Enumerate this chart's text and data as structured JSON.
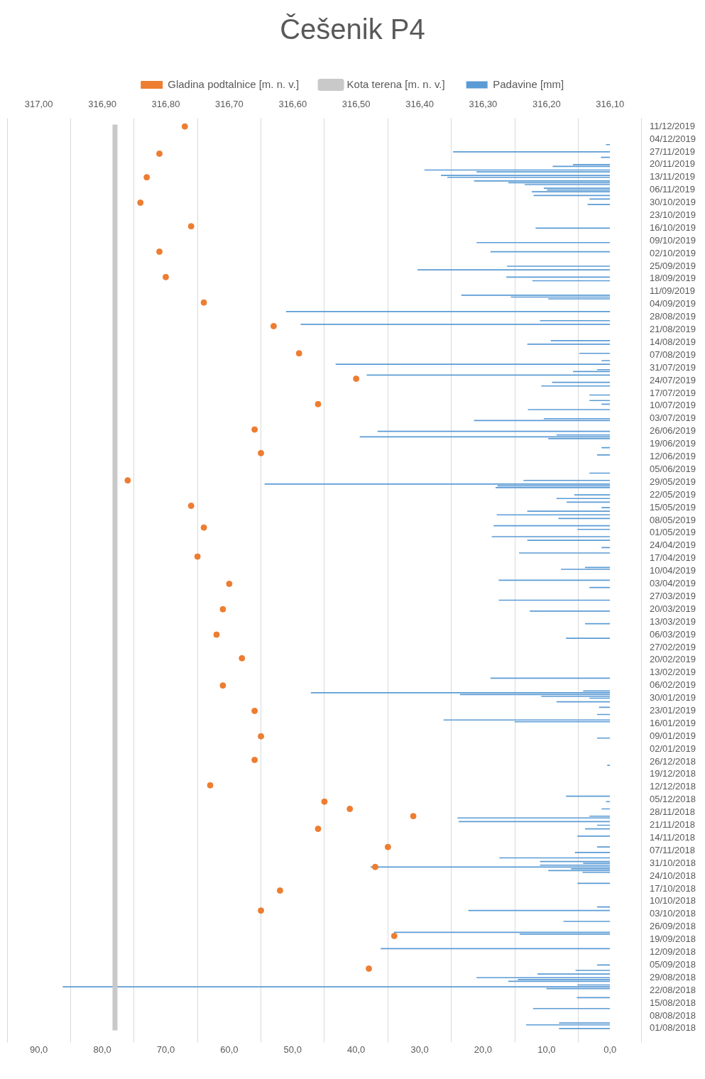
{
  "chart_data": {
    "type": "bar",
    "orientation": "horizontal",
    "title": "Češenik P4",
    "legend": "top",
    "grid": "x",
    "ylim": [
      "2018-07-31",
      "2019-12-12"
    ],
    "yticks": [
      {
        "value": "2018-08-01",
        "label": "01/08/2018"
      },
      {
        "value": "2018-08-08",
        "label": "08/08/2018"
      },
      {
        "value": "2018-08-15",
        "label": "15/08/2018"
      },
      {
        "value": "2018-08-22",
        "label": "22/08/2018"
      },
      {
        "value": "2018-08-29",
        "label": "29/08/2018"
      },
      {
        "value": "2018-09-05",
        "label": "05/09/2018"
      },
      {
        "value": "2018-09-12",
        "label": "12/09/2018"
      },
      {
        "value": "2018-09-19",
        "label": "19/09/2018"
      },
      {
        "value": "2018-09-26",
        "label": "26/09/2018"
      },
      {
        "value": "2018-10-03",
        "label": "03/10/2018"
      },
      {
        "value": "2018-10-10",
        "label": "10/10/2018"
      },
      {
        "value": "2018-10-17",
        "label": "17/10/2018"
      },
      {
        "value": "2018-10-24",
        "label": "24/10/2018"
      },
      {
        "value": "2018-10-31",
        "label": "31/10/2018"
      },
      {
        "value": "2018-11-07",
        "label": "07/11/2018"
      },
      {
        "value": "2018-11-14",
        "label": "14/11/2018"
      },
      {
        "value": "2018-11-21",
        "label": "21/11/2018"
      },
      {
        "value": "2018-11-28",
        "label": "28/11/2018"
      },
      {
        "value": "2018-12-05",
        "label": "05/12/2018"
      },
      {
        "value": "2018-12-12",
        "label": "12/12/2018"
      },
      {
        "value": "2018-12-19",
        "label": "19/12/2018"
      },
      {
        "value": "2018-12-26",
        "label": "26/12/2018"
      },
      {
        "value": "2019-01-02",
        "label": "02/01/2019"
      },
      {
        "value": "2019-01-09",
        "label": "09/01/2019"
      },
      {
        "value": "2019-01-16",
        "label": "16/01/2019"
      },
      {
        "value": "2019-01-23",
        "label": "23/01/2019"
      },
      {
        "value": "2019-01-30",
        "label": "30/01/2019"
      },
      {
        "value": "2019-02-06",
        "label": "06/02/2019"
      },
      {
        "value": "2019-02-13",
        "label": "13/02/2019"
      },
      {
        "value": "2019-02-20",
        "label": "20/02/2019"
      },
      {
        "value": "2019-02-27",
        "label": "27/02/2019"
      },
      {
        "value": "2019-03-06",
        "label": "06/03/2019"
      },
      {
        "value": "2019-03-13",
        "label": "13/03/2019"
      },
      {
        "value": "2019-03-20",
        "label": "20/03/2019"
      },
      {
        "value": "2019-03-27",
        "label": "27/03/2019"
      },
      {
        "value": "2019-04-03",
        "label": "03/04/2019"
      },
      {
        "value": "2019-04-10",
        "label": "10/04/2019"
      },
      {
        "value": "2019-04-17",
        "label": "17/04/2019"
      },
      {
        "value": "2019-04-24",
        "label": "24/04/2019"
      },
      {
        "value": "2019-05-01",
        "label": "01/05/2019"
      },
      {
        "value": "2019-05-08",
        "label": "08/05/2019"
      },
      {
        "value": "2019-05-15",
        "label": "15/05/2019"
      },
      {
        "value": "2019-05-22",
        "label": "22/05/2019"
      },
      {
        "value": "2019-05-29",
        "label": "29/05/2019"
      },
      {
        "value": "2019-06-05",
        "label": "05/06/2019"
      },
      {
        "value": "2019-06-12",
        "label": "12/06/2019"
      },
      {
        "value": "2019-06-19",
        "label": "19/06/2019"
      },
      {
        "value": "2019-06-26",
        "label": "26/06/2019"
      },
      {
        "value": "2019-07-03",
        "label": "03/07/2019"
      },
      {
        "value": "2019-07-10",
        "label": "10/07/2019"
      },
      {
        "value": "2019-07-17",
        "label": "17/07/2019"
      },
      {
        "value": "2019-07-24",
        "label": "24/07/2019"
      },
      {
        "value": "2019-07-31",
        "label": "31/07/2019"
      },
      {
        "value": "2019-08-07",
        "label": "07/08/2019"
      },
      {
        "value": "2019-08-14",
        "label": "14/08/2019"
      },
      {
        "value": "2019-08-21",
        "label": "21/08/2019"
      },
      {
        "value": "2019-08-28",
        "label": "28/08/2019"
      },
      {
        "value": "2019-09-04",
        "label": "04/09/2019"
      },
      {
        "value": "2019-09-11",
        "label": "11/09/2019"
      },
      {
        "value": "2019-09-18",
        "label": "18/09/2019"
      },
      {
        "value": "2019-09-25",
        "label": "25/09/2019"
      },
      {
        "value": "2019-10-02",
        "label": "02/10/2019"
      },
      {
        "value": "2019-10-09",
        "label": "09/10/2019"
      },
      {
        "value": "2019-10-16",
        "label": "16/10/2019"
      },
      {
        "value": "2019-10-23",
        "label": "23/10/2019"
      },
      {
        "value": "2019-10-30",
        "label": "30/10/2019"
      },
      {
        "value": "2019-11-06",
        "label": "06/11/2019"
      },
      {
        "value": "2019-11-13",
        "label": "13/11/2019"
      },
      {
        "value": "2019-11-20",
        "label": "20/11/2019"
      },
      {
        "value": "2019-11-27",
        "label": "27/11/2019"
      },
      {
        "value": "2019-12-04",
        "label": "04/12/2019"
      },
      {
        "value": "2019-12-11",
        "label": "11/12/2019"
      }
    ],
    "xlim": [
      90,
      0
    ],
    "xticks": [
      {
        "value": 0,
        "label": "0,0"
      },
      {
        "value": 10,
        "label": "10,0"
      },
      {
        "value": 20,
        "label": "20,0"
      },
      {
        "value": 30,
        "label": "30,0"
      },
      {
        "value": 40,
        "label": "40,0"
      },
      {
        "value": 50,
        "label": "50,0"
      },
      {
        "value": 60,
        "label": "60,0"
      },
      {
        "value": 70,
        "label": "70,0"
      },
      {
        "value": 80,
        "label": "80,0"
      },
      {
        "value": 90,
        "label": "90,0"
      }
    ],
    "x2lim": [
      317.0,
      316.1
    ],
    "x2ticks": [
      {
        "value": 316.1,
        "label": "316,10"
      },
      {
        "value": 316.2,
        "label": "316,20"
      },
      {
        "value": 316.3,
        "label": "316,30"
      },
      {
        "value": 316.4,
        "label": "316,40"
      },
      {
        "value": 316.5,
        "label": "316,50"
      },
      {
        "value": 316.6,
        "label": "316,60"
      },
      {
        "value": 316.7,
        "label": "316,70"
      },
      {
        "value": 316.8,
        "label": "316,80"
      },
      {
        "value": 316.9,
        "label": "316,90"
      },
      {
        "value": 317.0,
        "label": "317,00"
      }
    ],
    "series": [
      {
        "name": "Padavine [mm]",
        "color": "#5b9bd5",
        "x": [
          "2018-08-01",
          "2018-08-03",
          "2018-08-04",
          "2018-08-12",
          "2018-08-18",
          "2018-08-23",
          "2018-08-24",
          "2018-08-25",
          "2018-08-27",
          "2018-08-28",
          "2018-08-29",
          "2018-08-31",
          "2018-09-02",
          "2018-09-05",
          "2018-09-14",
          "2018-09-22",
          "2018-09-23",
          "2018-09-29",
          "2018-10-05",
          "2018-10-07",
          "2018-10-20",
          "2018-10-26",
          "2018-10-27",
          "2018-10-28",
          "2018-10-29",
          "2018-10-30",
          "2018-10-31",
          "2018-11-01",
          "2018-11-03",
          "2018-11-06",
          "2018-11-09",
          "2018-11-15",
          "2018-11-19",
          "2018-11-21",
          "2018-11-23",
          "2018-11-25",
          "2018-11-26",
          "2018-11-30",
          "2018-12-04",
          "2018-12-07",
          "2018-12-24",
          "2019-01-08",
          "2019-01-17",
          "2019-01-18",
          "2019-01-21",
          "2019-01-25",
          "2019-01-28",
          "2019-01-30",
          "2019-01-31",
          "2019-02-01",
          "2019-02-02",
          "2019-02-03",
          "2019-02-10",
          "2019-03-04",
          "2019-03-12",
          "2019-03-19",
          "2019-03-25",
          "2019-04-01",
          "2019-04-05",
          "2019-04-11",
          "2019-04-12",
          "2019-04-20",
          "2019-04-23",
          "2019-04-27",
          "2019-04-29",
          "2019-05-03",
          "2019-05-05",
          "2019-05-09",
          "2019-05-11",
          "2019-05-13",
          "2019-05-15",
          "2019-05-18",
          "2019-05-20",
          "2019-05-22",
          "2019-05-26",
          "2019-05-27",
          "2019-05-28",
          "2019-05-30",
          "2019-06-03",
          "2019-06-13",
          "2019-06-17",
          "2019-06-22",
          "2019-06-23",
          "2019-06-24",
          "2019-06-26",
          "2019-07-02",
          "2019-07-03",
          "2019-07-08",
          "2019-07-11",
          "2019-07-13",
          "2019-07-16",
          "2019-07-21",
          "2019-07-23",
          "2019-07-27",
          "2019-07-29",
          "2019-07-30",
          "2019-08-02",
          "2019-08-04",
          "2019-08-08",
          "2019-08-13",
          "2019-08-15",
          "2019-08-24",
          "2019-08-26",
          "2019-08-31",
          "2019-09-07",
          "2019-09-08",
          "2019-09-09",
          "2019-09-17",
          "2019-09-19",
          "2019-09-23",
          "2019-09-25",
          "2019-10-03",
          "2019-10-08",
          "2019-10-16",
          "2019-10-29",
          "2019-11-01",
          "2019-11-03",
          "2019-11-05",
          "2019-11-06",
          "2019-11-07",
          "2019-11-09",
          "2019-11-10",
          "2019-11-11",
          "2019-11-13",
          "2019-11-14",
          "2019-11-16",
          "2019-11-17",
          "2019-11-19",
          "2019-11-20",
          "2019-11-24",
          "2019-11-27",
          "2019-12-01"
        ],
        "values": [
          8.0,
          13.2,
          8.0,
          12.1,
          5.2,
          10.0,
          86.2,
          5.1,
          16.0,
          14.5,
          21.0,
          11.4,
          5.4,
          2.0,
          36.1,
          14.2,
          34.0,
          7.3,
          22.3,
          2.0,
          5.1,
          4.3,
          9.7,
          6.1,
          37.7,
          11.0,
          4.2,
          11.0,
          17.4,
          5.5,
          2.0,
          5.1,
          3.9,
          2.0,
          23.8,
          24.0,
          3.2,
          1.3,
          0.6,
          6.9,
          0.4,
          2.0,
          15.0,
          26.2,
          2.0,
          1.7,
          8.4,
          3.2,
          10.8,
          23.6,
          47.1,
          4.2,
          18.8,
          6.9,
          3.9,
          12.6,
          17.5,
          3.2,
          17.5,
          7.7,
          3.9,
          14.3,
          1.3,
          13.0,
          18.6,
          5.1,
          18.3,
          8.1,
          17.8,
          13.0,
          1.3,
          6.8,
          8.4,
          5.6,
          18.0,
          17.7,
          54.4,
          13.6,
          3.2,
          2.0,
          1.3,
          9.7,
          39.4,
          8.4,
          36.6,
          21.4,
          10.4,
          12.9,
          1.3,
          3.2,
          3.2,
          10.8,
          9.1,
          38.3,
          5.8,
          2.0,
          43.2,
          1.3,
          4.8,
          13.0,
          9.3,
          48.7,
          11.0,
          51.0,
          9.7,
          15.6,
          23.4,
          12.2,
          16.3,
          30.3,
          16.2,
          18.8,
          21.0,
          11.7,
          3.5,
          3.2,
          12.0,
          12.3,
          9.9,
          10.4,
          13.4,
          16.0,
          21.4,
          25.6,
          26.6,
          21.0,
          29.2,
          9.0,
          5.8,
          1.4,
          24.7,
          0.6
        ]
      },
      {
        "name": "Gladina podtalnice [m. n. v.]",
        "type": "scatter",
        "axis": "x2",
        "color": "#ed7d31",
        "marker": "circle",
        "x": [
          "2018-09-03",
          "2018-09-21",
          "2018-10-05",
          "2018-10-16",
          "2018-10-29",
          "2018-11-09",
          "2018-11-19",
          "2018-11-26",
          "2018-11-30",
          "2018-12-04",
          "2018-12-13",
          "2018-12-27",
          "2019-01-09",
          "2019-01-23",
          "2019-02-06",
          "2019-02-21",
          "2019-03-06",
          "2019-03-20",
          "2019-04-03",
          "2019-04-18",
          "2019-05-04",
          "2019-05-16",
          "2019-05-30",
          "2019-06-14",
          "2019-06-27",
          "2019-07-11",
          "2019-07-25",
          "2019-08-08",
          "2019-08-23",
          "2019-09-05",
          "2019-09-19",
          "2019-10-03",
          "2019-10-17",
          "2019-10-30",
          "2019-11-13",
          "2019-11-26",
          "2019-12-11"
        ],
        "values": [
          316.48,
          316.44,
          316.65,
          316.62,
          316.47,
          316.45,
          316.56,
          316.41,
          316.51,
          316.55,
          316.73,
          316.66,
          316.65,
          316.66,
          316.71,
          316.68,
          316.72,
          316.71,
          316.7,
          316.75,
          316.74,
          316.76,
          316.86,
          316.65,
          316.66,
          316.56,
          316.5,
          316.59,
          316.63,
          316.74,
          316.8,
          316.81,
          316.76,
          316.84,
          316.83,
          316.81,
          316.77
        ]
      },
      {
        "name": "Kota terena [m. n. v.]",
        "type": "line",
        "axis": "x2",
        "color": "#c9c9c9",
        "marker": "none",
        "x": [
          "2018-07-31",
          "2019-12-12"
        ],
        "values": [
          316.88,
          316.88
        ]
      }
    ]
  }
}
